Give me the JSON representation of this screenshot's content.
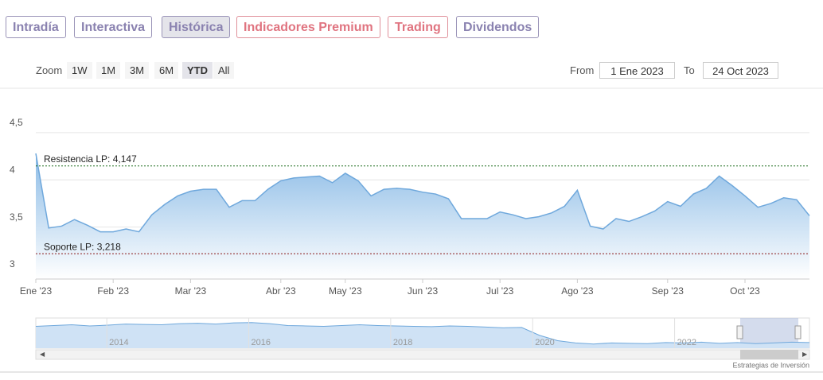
{
  "tabs": [
    "Intradía",
    "Interactiva",
    "Histórica",
    "Indicadores Premium",
    "Trading",
    "Dividendos"
  ],
  "zoom": {
    "label": "Zoom",
    "buttons": [
      "1W",
      "1M",
      "3M",
      "6M",
      "YTD",
      "All"
    ]
  },
  "range": {
    "from_label": "From",
    "from": "1 Ene 2023",
    "to_label": "To",
    "to": "24 Oct 2023"
  },
  "chart_data": {
    "type": "area",
    "color": "#6fa8dc",
    "categories": [
      "Ene '23",
      null,
      null,
      null,
      null,
      null,
      "Feb '23",
      null,
      null,
      null,
      null,
      null,
      "Mar '23",
      null,
      null,
      null,
      null,
      null,
      null,
      "Abr '23",
      null,
      null,
      null,
      null,
      "May '23",
      null,
      null,
      null,
      null,
      null,
      "Jun '23",
      null,
      null,
      null,
      null,
      null,
      "Jul '23",
      null,
      null,
      null,
      null,
      null,
      "Ago '23",
      null,
      null,
      null,
      null,
      null,
      null,
      "Sep '23",
      null,
      null,
      null,
      null,
      null,
      "Oct '23",
      null,
      null,
      null,
      null,
      null
    ],
    "values": [
      4.28,
      3.49,
      3.51,
      3.58,
      3.52,
      3.45,
      3.45,
      3.48,
      3.45,
      3.63,
      3.74,
      3.83,
      3.88,
      3.9,
      3.9,
      3.71,
      3.78,
      3.78,
      3.9,
      3.99,
      4.02,
      4.03,
      4.04,
      3.97,
      4.07,
      3.99,
      3.83,
      3.9,
      3.91,
      3.9,
      3.87,
      3.85,
      3.8,
      3.59,
      3.59,
      3.59,
      3.66,
      3.63,
      3.59,
      3.61,
      3.65,
      3.72,
      3.89,
      3.51,
      3.48,
      3.59,
      3.56,
      3.61,
      3.67,
      3.77,
      3.72,
      3.85,
      3.91,
      4.04,
      3.94,
      3.83,
      3.71,
      3.75,
      3.81,
      3.79,
      3.62
    ],
    "ylim": [
      2.95,
      4.81
    ],
    "yticks": [
      3,
      {
        "value": 3.5,
        "label": "3,5"
      },
      4,
      {
        "value": 4.5,
        "label": "4,5"
      }
    ],
    "grid": true,
    "plot_lines": [
      {
        "value": 4.147,
        "label": "Resistencia LP: 4,147",
        "color": "#1a6b1a"
      },
      {
        "value": 3.218,
        "label": "Soporte LP: 3,218",
        "color": "#8b1a1a"
      }
    ],
    "navigator": {
      "xlim": [
        2013.0,
        2023.9
      ],
      "xticks": [
        2014,
        2016,
        2018,
        2020,
        2022
      ],
      "ylim": [
        3,
        7
      ],
      "values": [
        5.9,
        6.0,
        6.1,
        5.95,
        6.05,
        6.2,
        6.15,
        6.1,
        6.25,
        6.3,
        6.2,
        6.35,
        6.4,
        6.25,
        6.0,
        5.95,
        5.9,
        6.0,
        6.1,
        6.0,
        5.95,
        5.9,
        5.85,
        5.95,
        5.9,
        5.8,
        5.7,
        5.75,
        4.7,
        4.0,
        3.7,
        3.55,
        3.7,
        3.65,
        3.6,
        3.75,
        3.7,
        3.8,
        3.65,
        3.75,
        3.6,
        3.7,
        3.8,
        3.75
      ]
    }
  },
  "credit": "Estrategias de Inversión"
}
